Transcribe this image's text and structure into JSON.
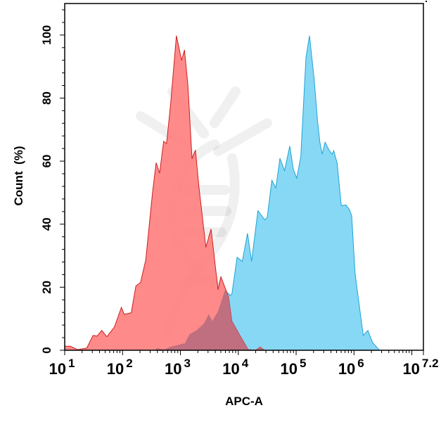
{
  "chart_data": {
    "type": "area",
    "title": "",
    "xlabel": "APC-A",
    "ylabel": "Count  (%)",
    "x_scale": "log",
    "xlim_log10": [
      1,
      7.2
    ],
    "ylim": [
      0,
      110
    ],
    "grid": false,
    "legend": "none",
    "x_ticks": [
      {
        "base": "10",
        "exp": "1",
        "log10": 1
      },
      {
        "base": "10",
        "exp": "2",
        "log10": 2
      },
      {
        "base": "10",
        "exp": "3",
        "log10": 3
      },
      {
        "base": "10",
        "exp": "4",
        "log10": 4
      },
      {
        "base": "10",
        "exp": "5",
        "log10": 5
      },
      {
        "base": "10",
        "exp": "6",
        "log10": 6
      },
      {
        "base": "10",
        "exp": "7.2",
        "log10": 7.2
      }
    ],
    "y_ticks": [
      "0",
      "20",
      "40",
      "60",
      "80",
      "100"
    ],
    "series": [
      {
        "color": "#ff8080",
        "line_color": "#cc1f1f",
        "points_log10x_pct": [
          [
            0.98,
            1.3
          ],
          [
            1.1,
            1.3
          ],
          [
            1.22,
            0.2
          ],
          [
            1.38,
            0.7
          ],
          [
            1.49,
            4.7
          ],
          [
            1.56,
            4.5
          ],
          [
            1.64,
            6.3
          ],
          [
            1.73,
            4.3
          ],
          [
            1.86,
            7.4
          ],
          [
            1.98,
            13.6
          ],
          [
            2.03,
            11.4
          ],
          [
            2.15,
            11.9
          ],
          [
            2.23,
            20.4
          ],
          [
            2.31,
            21.5
          ],
          [
            2.4,
            28.6
          ],
          [
            2.52,
            50.3
          ],
          [
            2.58,
            59.5
          ],
          [
            2.64,
            56.2
          ],
          [
            2.71,
            66.3
          ],
          [
            2.76,
            65.6
          ],
          [
            2.83,
            77.9
          ],
          [
            2.93,
            99.8
          ],
          [
            3.02,
            92
          ],
          [
            3.07,
            95.3
          ],
          [
            3.13,
            84
          ],
          [
            3.2,
            60.8
          ],
          [
            3.26,
            63.5
          ],
          [
            3.32,
            51.9
          ],
          [
            3.44,
            32.7
          ],
          [
            3.53,
            38.5
          ],
          [
            3.65,
            19.2
          ],
          [
            3.7,
            23.3
          ],
          [
            3.83,
            17
          ],
          [
            3.89,
            9.2
          ],
          [
            4.05,
            4.0
          ],
          [
            4.17,
            0.2
          ],
          [
            4.3,
            0
          ],
          [
            4.38,
            1
          ],
          [
            4.45,
            0
          ]
        ]
      },
      {
        "color": "#87d8f5",
        "line_color": "#1fa3d6",
        "points_log10x_pct": [
          [
            2.56,
            0
          ],
          [
            2.6,
            0.7
          ],
          [
            2.71,
            0.2
          ],
          [
            2.83,
            1.1
          ],
          [
            3.08,
            2.2
          ],
          [
            3.16,
            5.1
          ],
          [
            3.28,
            6.3
          ],
          [
            3.41,
            8.5
          ],
          [
            3.49,
            11.4
          ],
          [
            3.55,
            9.2
          ],
          [
            3.65,
            12.3
          ],
          [
            3.77,
            19.0
          ],
          [
            3.86,
            17.4
          ],
          [
            3.89,
            17.9
          ],
          [
            3.98,
            29.5
          ],
          [
            4.07,
            28.2
          ],
          [
            4.16,
            37.1
          ],
          [
            4.23,
            28.2
          ],
          [
            4.34,
            44.3
          ],
          [
            4.46,
            41.4
          ],
          [
            4.5,
            42.1
          ],
          [
            4.58,
            53.9
          ],
          [
            4.65,
            51.5
          ],
          [
            4.72,
            60.9
          ],
          [
            4.8,
            57.0
          ],
          [
            4.89,
            64.8
          ],
          [
            4.95,
            57.5
          ],
          [
            5.01,
            54.6
          ],
          [
            5.08,
            61.3
          ],
          [
            5.17,
            92.8
          ],
          [
            5.23,
            99.8
          ],
          [
            5.31,
            86.4
          ],
          [
            5.37,
            72.7
          ],
          [
            5.41,
            66.0
          ],
          [
            5.45,
            62.2
          ],
          [
            5.5,
            66.0
          ],
          [
            5.56,
            63.8
          ],
          [
            5.62,
            62.2
          ],
          [
            5.65,
            63.3
          ],
          [
            5.71,
            59.3
          ],
          [
            5.78,
            45.9
          ],
          [
            5.86,
            46.1
          ],
          [
            5.92,
            44.7
          ],
          [
            5.96,
            42.7
          ],
          [
            6.02,
            24.2
          ],
          [
            6.1,
            13.0
          ],
          [
            6.16,
            4.7
          ],
          [
            6.24,
            6.3
          ],
          [
            6.32,
            2.5
          ],
          [
            6.44,
            0
          ]
        ]
      }
    ],
    "overlap_color": "#bf6f7f"
  }
}
